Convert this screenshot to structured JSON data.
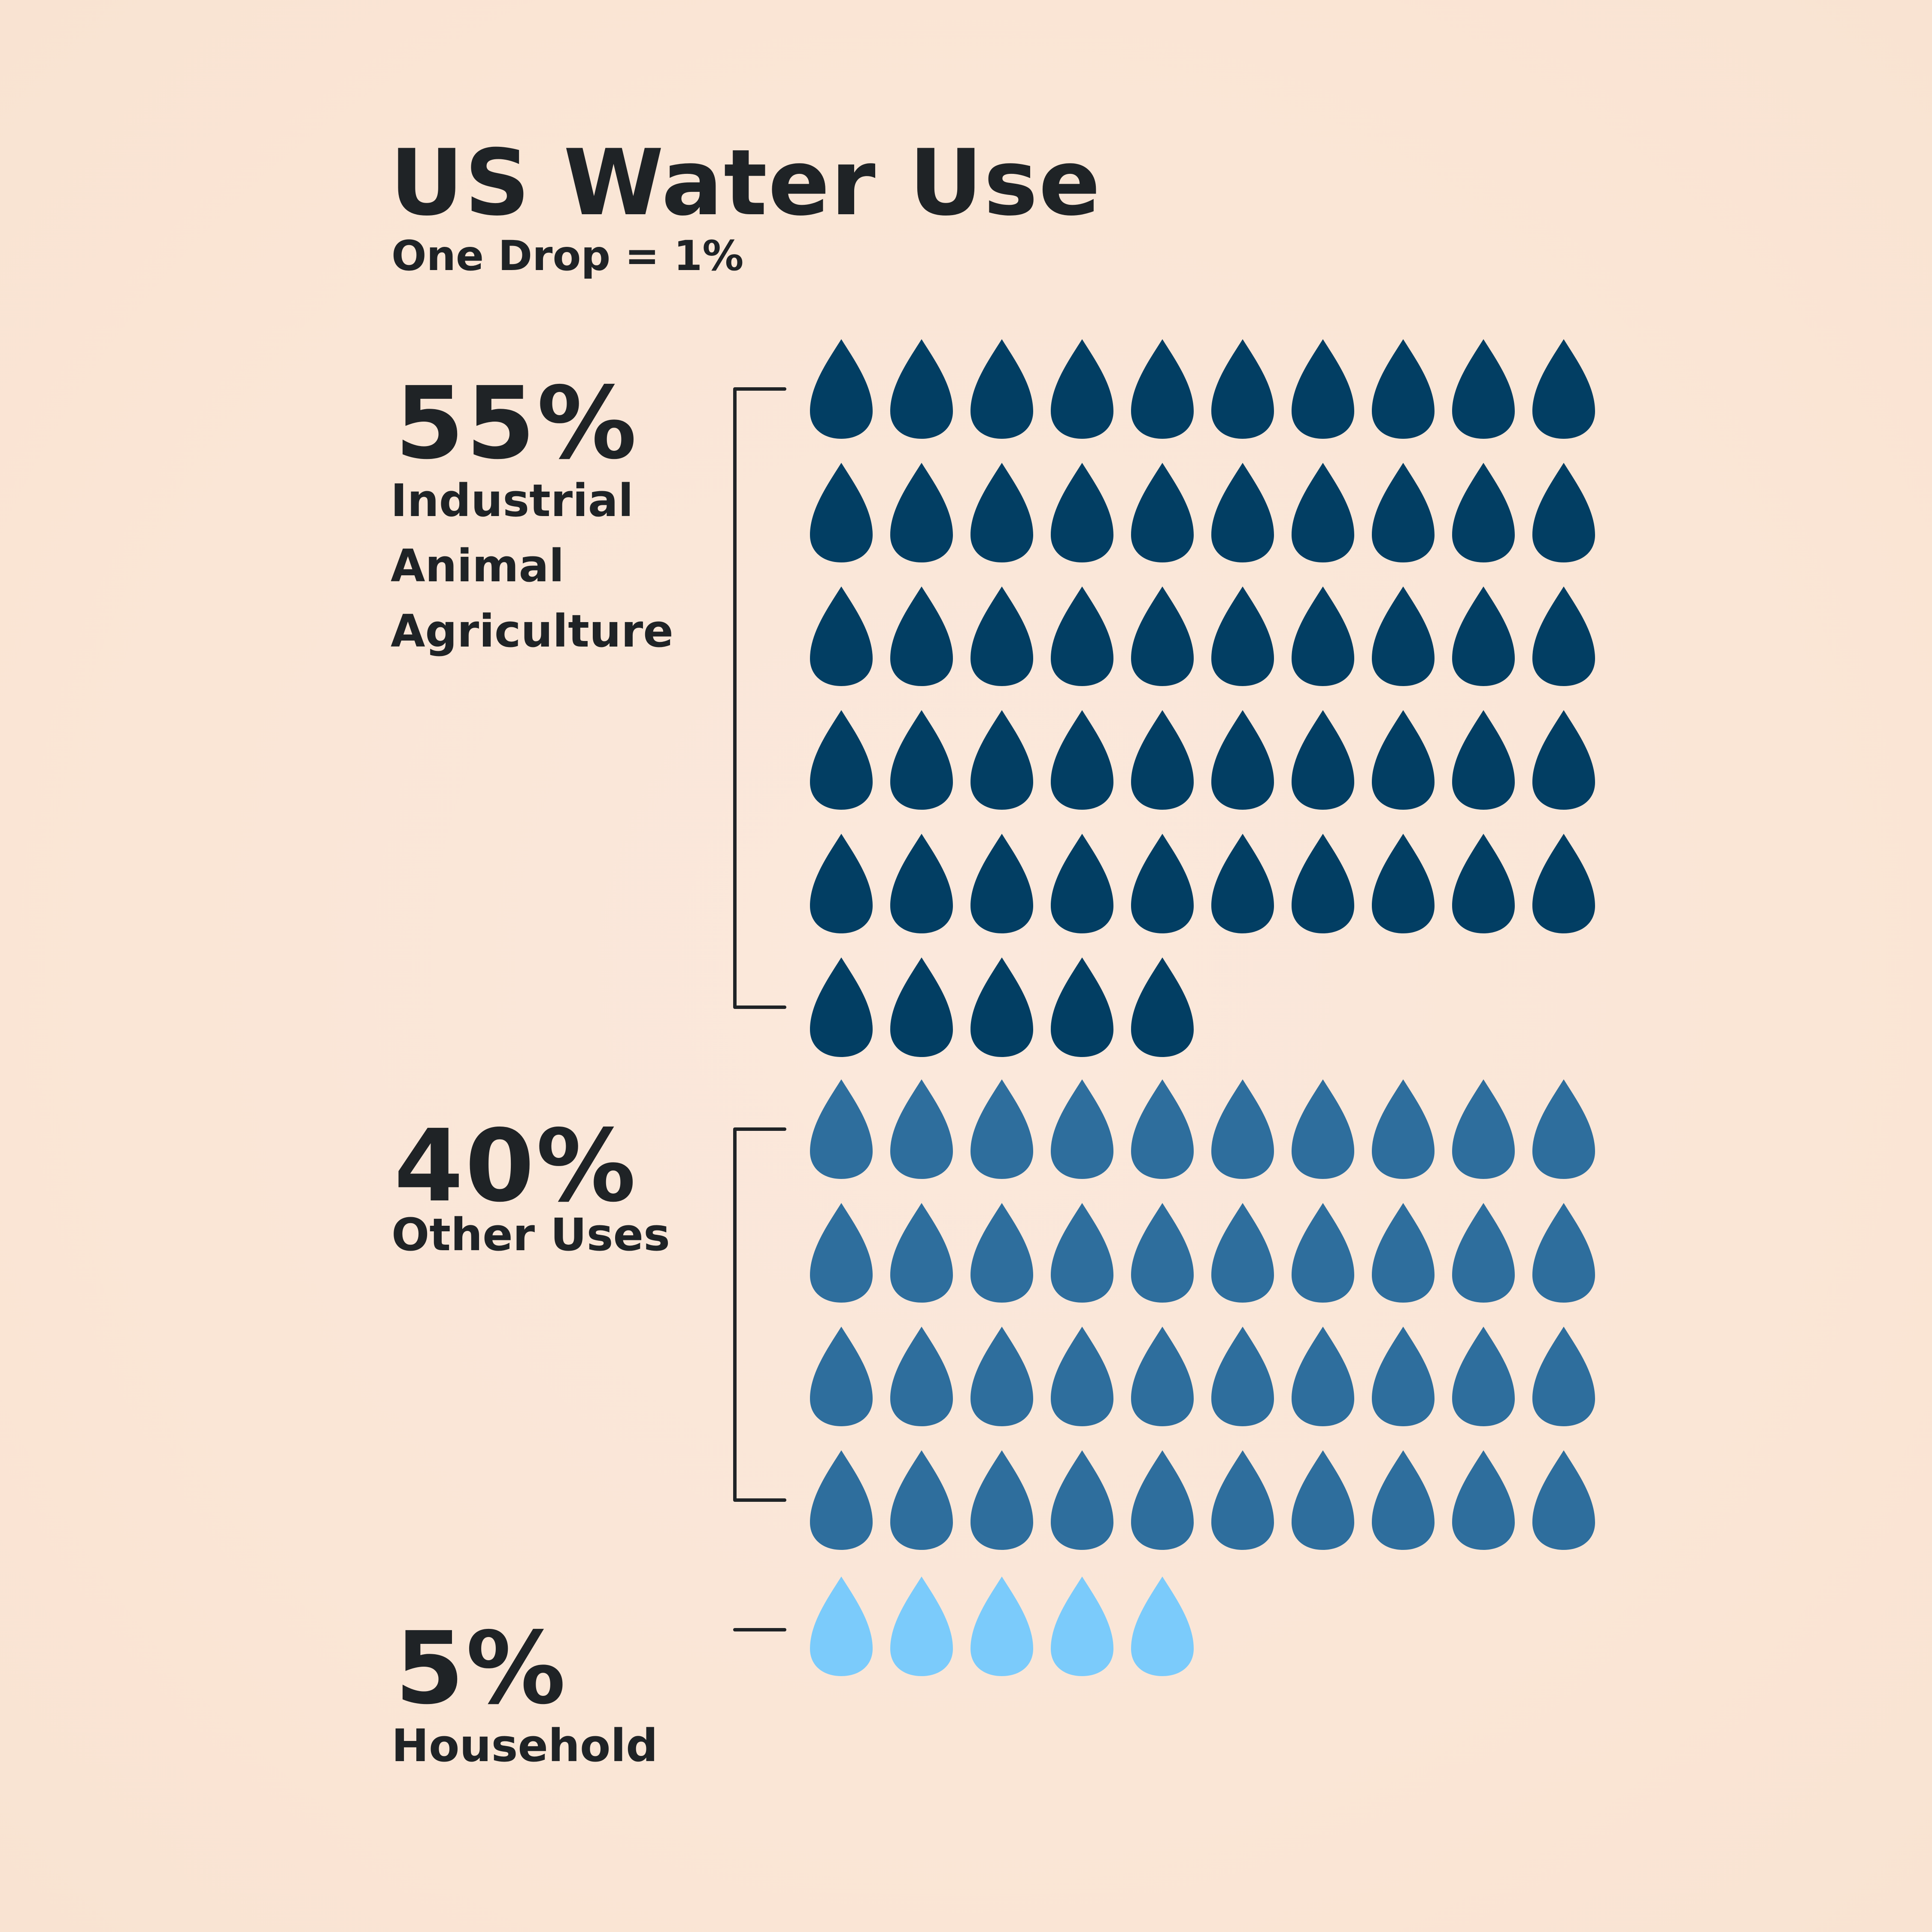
{
  "title": "US Water Use",
  "subtitle": "One Drop = 1%",
  "chart_data": {
    "type": "pictogram",
    "title": "US Water Use",
    "subtitle": "One Drop = 1%",
    "unit_per_icon": 1,
    "columns": 10,
    "series": [
      {
        "name": "Industrial Animal Agriculture",
        "value": 55,
        "percent_label": "55%",
        "label_lines": [
          "Industrial",
          "Animal",
          "Agriculture"
        ],
        "color": "#023e63"
      },
      {
        "name": "Other Uses",
        "value": 40,
        "percent_label": "40%",
        "label_lines": [
          "Other Uses"
        ],
        "color": "#2e6e9d"
      },
      {
        "name": "Household",
        "value": 5,
        "percent_label": "5%",
        "label_lines": [
          "Household"
        ],
        "color": "#7bcbfb"
      }
    ]
  }
}
